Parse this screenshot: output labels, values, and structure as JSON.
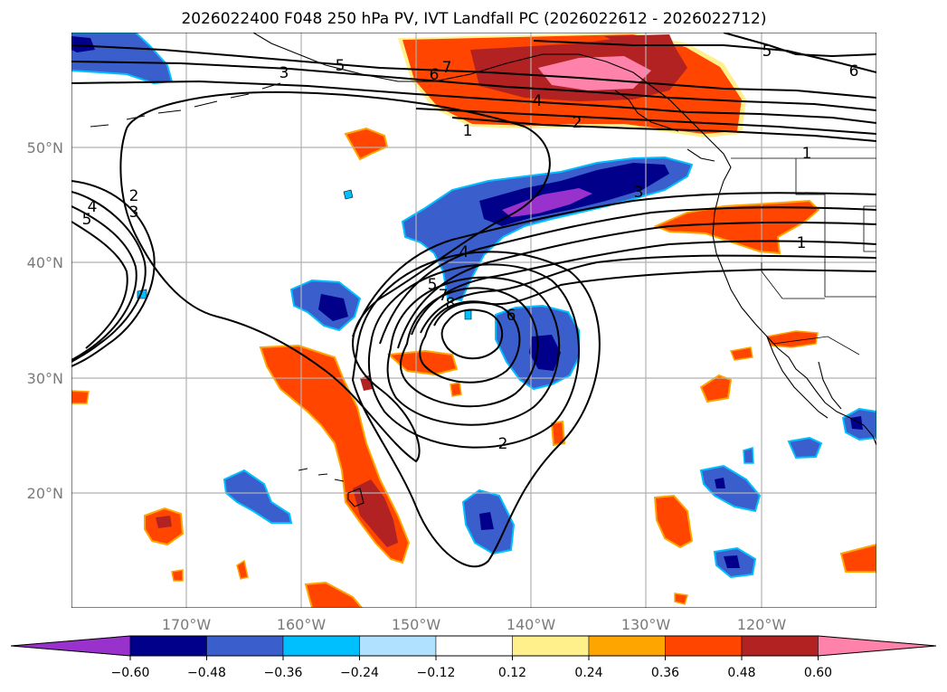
{
  "title": "2026022400 F048 250 hPa PV, IVT Landfall PC (2026022612 - 2026022712)",
  "map": {
    "lat_labels": [
      {
        "text": "50°N",
        "lat": 50
      },
      {
        "text": "40°N",
        "lat": 40
      },
      {
        "text": "30°N",
        "lat": 30
      },
      {
        "text": "20°N",
        "lat": 20
      }
    ],
    "lon_labels": [
      {
        "text": "170°W",
        "lon": -170
      },
      {
        "text": "160°W",
        "lon": -160
      },
      {
        "text": "150°W",
        "lon": -150
      },
      {
        "text": "140°W",
        "lon": -140
      },
      {
        "text": "130°W",
        "lon": -130
      },
      {
        "text": "120°W",
        "lon": -120
      }
    ],
    "contour_labels": [
      "3",
      "5",
      "7",
      "6",
      "4",
      "2",
      "1",
      "3",
      "2",
      "3",
      "4",
      "5",
      "4",
      "5",
      "7",
      "8",
      "6",
      "2",
      "1",
      "1",
      "6",
      "5"
    ]
  },
  "colorbar": {
    "ticks": [
      "−0.60",
      "−0.48",
      "−0.36",
      "−0.24",
      "−0.12",
      "0.12",
      "0.24",
      "0.36",
      "0.48",
      "0.60"
    ],
    "colors": {
      "lt_neg060": "#9932cc",
      "neg060_neg048": "#00008b",
      "neg048_neg036": "#3a5fcd",
      "neg036_neg024": "#00bfff",
      "neg024_neg012": "#b0e2ff",
      "neg012_012": "#ffffff",
      "pos012_024": "#fff08c",
      "pos024_036": "#ffa500",
      "pos036_048": "#ff4500",
      "pos048_060": "#b22222",
      "gt_060": "#ff82ab"
    }
  }
}
